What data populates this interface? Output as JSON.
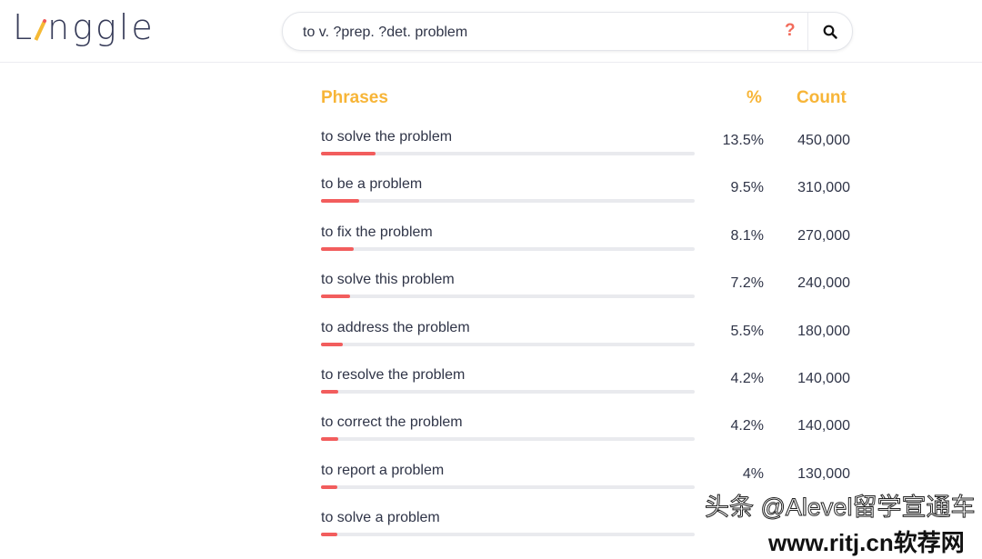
{
  "header": {
    "logo": "Linggle",
    "search_value": "to v. ?prep. ?det. problem",
    "help_label": "?",
    "search_icon": "search-icon"
  },
  "table": {
    "headers": {
      "phrases": "Phrases",
      "percent": "%",
      "count": "Count"
    },
    "rows": [
      {
        "phrase": "to solve the problem",
        "percent": "13.5%",
        "count": "450,000",
        "fill": 13.5
      },
      {
        "phrase": "to be a problem",
        "percent": "9.5%",
        "count": "310,000",
        "fill": 9.5
      },
      {
        "phrase": "to fix the problem",
        "percent": "8.1%",
        "count": "270,000",
        "fill": 8.1
      },
      {
        "phrase": "to solve this problem",
        "percent": "7.2%",
        "count": "240,000",
        "fill": 7.2
      },
      {
        "phrase": "to address the problem",
        "percent": "5.5%",
        "count": "180,000",
        "fill": 5.5
      },
      {
        "phrase": "to resolve the problem",
        "percent": "4.2%",
        "count": "140,000",
        "fill": 4.2
      },
      {
        "phrase": "to correct the problem",
        "percent": "4.2%",
        "count": "140,000",
        "fill": 4.2
      },
      {
        "phrase": "to report a problem",
        "percent": "4%",
        "count": "130,000",
        "fill": 4
      },
      {
        "phrase": "to solve a problem",
        "percent": "",
        "count": "",
        "fill": 4
      }
    ]
  },
  "colors": {
    "accent": "#f7b538",
    "bar": "#f25d5d",
    "track": "#e9eaee"
  },
  "watermarks": [
    "头条 @Alevel留学宣通车",
    "www.ritj.cn软荐网"
  ]
}
